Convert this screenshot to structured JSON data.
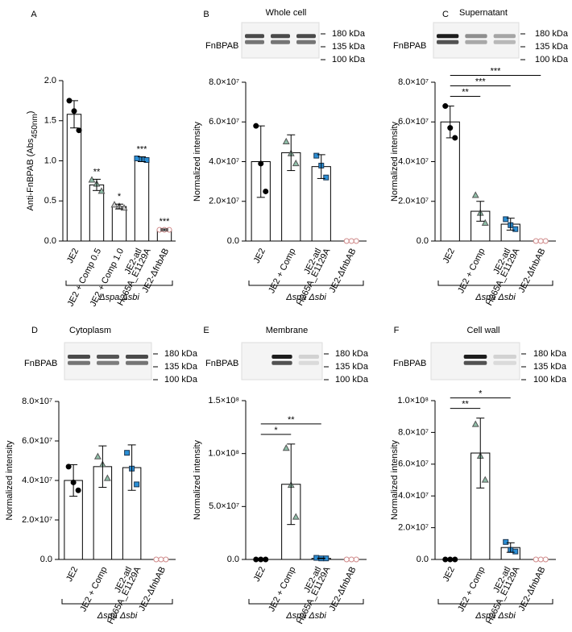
{
  "chart_data": [
    {
      "type": "bar",
      "panel": "A",
      "ylabel": [
        "Anti-FnBPAB (Abs",
        "450nm",
        ")"
      ],
      "categories": [
        "JE2",
        "JE2 + Comp 0.5",
        "JE2 + Comp 1.0",
        [
          "JE2-atl",
          "H265A_E1129A"
        ],
        "JE2-ΔfnbAB"
      ],
      "values": [
        1.58,
        0.7,
        0.43,
        1.02,
        0.14
      ],
      "errors": [
        0.17,
        0.07,
        0.03,
        0.03,
        0.01
      ],
      "points": [
        [
          1.75,
          1.62,
          1.38
        ],
        [
          0.76,
          0.71,
          0.62
        ],
        [
          0.45,
          0.43,
          0.41
        ],
        [
          1.03,
          1.02,
          1.01
        ],
        [
          0.14,
          0.14,
          0.14
        ]
      ],
      "markers": [
        {
          "shape": "circle",
          "fill": "#000000",
          "stroke": "#000000"
        },
        {
          "shape": "triangle",
          "fill": "#8fbfa8",
          "stroke": "#555555"
        },
        {
          "shape": "triangle",
          "fill": "#cfcfcf",
          "stroke": "#555555"
        },
        {
          "shape": "square",
          "fill": "#2b8fd6",
          "stroke": "#1a3550"
        },
        {
          "shape": "circle",
          "fill": "#ffffff",
          "stroke": "#d08a8a"
        }
      ],
      "ylim": [
        0,
        2.0
      ],
      "yticks": [
        {
          "value": 0,
          "label": "0.0"
        },
        {
          "value": 0.5,
          "label": "0.5"
        },
        {
          "value": 1.0,
          "label": "1.0"
        },
        {
          "value": 1.5,
          "label": "1.5"
        },
        {
          "value": 2.0,
          "label": "2.0"
        }
      ],
      "stars": [
        null,
        "**",
        "*",
        "***",
        "***"
      ],
      "group_label": "Δspa Δsbi"
    },
    {
      "type": "bar",
      "panel": "B",
      "title": "Whole cell",
      "blot_label": "FnBPAB",
      "kda": [
        "180 kDa",
        "135 kDa",
        "100 kDa"
      ],
      "ylabel": [
        "Normalized intensity"
      ],
      "categories": [
        "JE2",
        "JE2 + Comp",
        [
          "JE2-atl",
          "H265A_E1129A"
        ],
        "JE2-ΔfnbAB"
      ],
      "values": [
        40000000,
        44500000,
        37500000,
        0
      ],
      "errors": [
        18000000,
        9000000,
        6000000,
        0
      ],
      "points": [
        [
          58000000,
          39000000,
          25000000
        ],
        [
          50000000,
          44000000,
          39000000
        ],
        [
          43000000,
          38000000,
          32000000
        ],
        [
          0,
          0,
          0
        ]
      ],
      "markers": [
        {
          "shape": "circle",
          "fill": "#000000",
          "stroke": "#000000"
        },
        {
          "shape": "triangle",
          "fill": "#8fbfa8",
          "stroke": "#555555"
        },
        {
          "shape": "square",
          "fill": "#2b8fd6",
          "stroke": "#1a3550"
        },
        {
          "shape": "circle",
          "fill": "#ffffff",
          "stroke": "#d08a8a"
        }
      ],
      "ylim": [
        0,
        80000000
      ],
      "yticks": [
        {
          "value": 0,
          "label": "0.0"
        },
        {
          "value": 20000000,
          "label": "2.0×10⁷"
        },
        {
          "value": 40000000,
          "label": "4.0×10⁷"
        },
        {
          "value": 60000000,
          "label": "6.0×10⁷"
        },
        {
          "value": 80000000,
          "label": "8.0×10⁷"
        }
      ],
      "group_label": "Δspa Δsbi"
    },
    {
      "type": "bar",
      "panel": "C",
      "title": "Supernatant",
      "blot_label": "FnBPAB",
      "kda": [
        "180 kDa",
        "135 kDa",
        "100 kDa"
      ],
      "ylabel": [
        "Normalized intensity"
      ],
      "categories": [
        "JE2",
        "JE2 + Comp",
        [
          "JE2-atl",
          "H265A_E1129A"
        ],
        "JE2-ΔfnbAB"
      ],
      "values": [
        60000000,
        15000000,
        8500000,
        0
      ],
      "errors": [
        8000000,
        5000000,
        3000000,
        0
      ],
      "points": [
        [
          68000000,
          57000000,
          52000000
        ],
        [
          23000000,
          14000000,
          9000000
        ],
        [
          11000000,
          8000000,
          6000000
        ],
        [
          0,
          0,
          0
        ]
      ],
      "markers": [
        {
          "shape": "circle",
          "fill": "#000000",
          "stroke": "#000000"
        },
        {
          "shape": "triangle",
          "fill": "#8fbfa8",
          "stroke": "#555555"
        },
        {
          "shape": "square",
          "fill": "#2b8fd6",
          "stroke": "#1a3550"
        },
        {
          "shape": "circle",
          "fill": "#ffffff",
          "stroke": "#d08a8a"
        }
      ],
      "ylim": [
        0,
        80000000
      ],
      "yticks": [
        {
          "value": 0,
          "label": "0.0"
        },
        {
          "value": 20000000,
          "label": "2.0×10⁷"
        },
        {
          "value": 40000000,
          "label": "4.0×10⁷"
        },
        {
          "value": 60000000,
          "label": "6.0×10⁷"
        },
        {
          "value": 80000000,
          "label": "8.0×10⁷"
        }
      ],
      "comparisons": [
        {
          "from": 0,
          "to": 1,
          "label": "**"
        },
        {
          "from": 0,
          "to": 2,
          "label": "***"
        },
        {
          "from": 0,
          "to": 3,
          "label": "***"
        }
      ],
      "group_label": "Δspa Δsbi"
    },
    {
      "type": "bar",
      "panel": "D",
      "title": "Cytoplasm",
      "blot_label": "FnBPAB",
      "kda": [
        "180 kDa",
        "135 kDa",
        "100 kDa"
      ],
      "ylabel": [
        "Normalized intensity"
      ],
      "categories": [
        "JE2",
        "JE2 + Comp",
        [
          "JE2-atl",
          "H265A_E1129A"
        ],
        "JE2-ΔfnbAB"
      ],
      "values": [
        40000000,
        47000000,
        46500000,
        0
      ],
      "errors": [
        8000000,
        10500000,
        11500000,
        0
      ],
      "points": [
        [
          47000000,
          39000000,
          35000000
        ],
        [
          52000000,
          48000000,
          41000000
        ],
        [
          54000000,
          46000000,
          38000000
        ],
        [
          0,
          0,
          0
        ]
      ],
      "markers": [
        {
          "shape": "circle",
          "fill": "#000000",
          "stroke": "#000000"
        },
        {
          "shape": "triangle",
          "fill": "#8fbfa8",
          "stroke": "#555555"
        },
        {
          "shape": "square",
          "fill": "#2b8fd6",
          "stroke": "#1a3550"
        },
        {
          "shape": "circle",
          "fill": "#ffffff",
          "stroke": "#d08a8a"
        }
      ],
      "ylim": [
        0,
        80000000
      ],
      "yticks": [
        {
          "value": 0,
          "label": "0.0"
        },
        {
          "value": 20000000,
          "label": "2.0×10⁷"
        },
        {
          "value": 40000000,
          "label": "4.0×10⁷"
        },
        {
          "value": 60000000,
          "label": "6.0×10⁷"
        },
        {
          "value": 80000000,
          "label": "8.0×10⁷"
        }
      ],
      "group_label": "Δspa Δsbi"
    },
    {
      "type": "bar",
      "panel": "E",
      "title": "Membrane",
      "blot_label": "FnBPAB",
      "kda": [
        "180 kDa",
        "135 kDa",
        "100 kDa"
      ],
      "ylabel": [
        "Normalized intensity"
      ],
      "categories": [
        "JE2",
        "JE2 + Comp",
        [
          "JE2-atl",
          "H265A_E1129A"
        ],
        "JE2-ΔfnbAB"
      ],
      "values": [
        0,
        71000000,
        1000000,
        0
      ],
      "errors": [
        0,
        38000000,
        300000,
        0
      ],
      "points": [
        [
          0,
          0,
          0
        ],
        [
          105000000,
          70000000,
          40000000
        ],
        [
          1500000,
          1000000,
          1000000
        ],
        [
          0,
          0,
          0
        ]
      ],
      "markers": [
        {
          "shape": "circle",
          "fill": "#000000",
          "stroke": "#000000"
        },
        {
          "shape": "triangle",
          "fill": "#8fbfa8",
          "stroke": "#555555"
        },
        {
          "shape": "square",
          "fill": "#2b8fd6",
          "stroke": "#1a3550"
        },
        {
          "shape": "circle",
          "fill": "#ffffff",
          "stroke": "#d08a8a"
        }
      ],
      "ylim": [
        0,
        150000000
      ],
      "yticks": [
        {
          "value": 0,
          "label": "0.0"
        },
        {
          "value": 50000000,
          "label": "5.0×10⁷"
        },
        {
          "value": 100000000,
          "label": "1.0×10⁸"
        },
        {
          "value": 150000000,
          "label": "1.5×10⁸"
        }
      ],
      "comparisons": [
        {
          "from": 0,
          "to": 1,
          "label": "*"
        },
        {
          "from": 0,
          "to": 2,
          "label": "**"
        }
      ],
      "group_label": "Δspa Δsbi"
    },
    {
      "type": "bar",
      "panel": "F",
      "title": "Cell wall",
      "blot_label": "FnBPAB",
      "kda": [
        "180 kDa",
        "135 kDa",
        "100 kDa"
      ],
      "ylabel": [
        "Normalized intensity"
      ],
      "categories": [
        "JE2",
        "JE2 + Comp",
        [
          "JE2-atl",
          "H265A_E1129A"
        ],
        "JE2-ΔfnbAB"
      ],
      "values": [
        0,
        67000000,
        7500000,
        0
      ],
      "errors": [
        0,
        22000000,
        3000000,
        0
      ],
      "points": [
        [
          0,
          0,
          0
        ],
        [
          85000000,
          65000000,
          50000000
        ],
        [
          11000000,
          6000000,
          5000000
        ],
        [
          0,
          0,
          0
        ]
      ],
      "markers": [
        {
          "shape": "circle",
          "fill": "#000000",
          "stroke": "#000000"
        },
        {
          "shape": "triangle",
          "fill": "#8fbfa8",
          "stroke": "#555555"
        },
        {
          "shape": "square",
          "fill": "#2b8fd6",
          "stroke": "#1a3550"
        },
        {
          "shape": "circle",
          "fill": "#ffffff",
          "stroke": "#d08a8a"
        }
      ],
      "ylim": [
        0,
        100000000
      ],
      "yticks": [
        {
          "value": 0,
          "label": "0.0"
        },
        {
          "value": 20000000,
          "label": "2.0×10⁷"
        },
        {
          "value": 40000000,
          "label": "4.0×10⁷"
        },
        {
          "value": 60000000,
          "label": "6.0×10⁷"
        },
        {
          "value": 80000000,
          "label": "8.0×10⁷"
        },
        {
          "value": 100000000,
          "label": "1.0×10⁸"
        }
      ],
      "comparisons": [
        {
          "from": 0,
          "to": 1,
          "label": "**"
        },
        {
          "from": 0,
          "to": 2,
          "label": "*"
        }
      ],
      "group_label": "Δspa Δsbi"
    }
  ]
}
